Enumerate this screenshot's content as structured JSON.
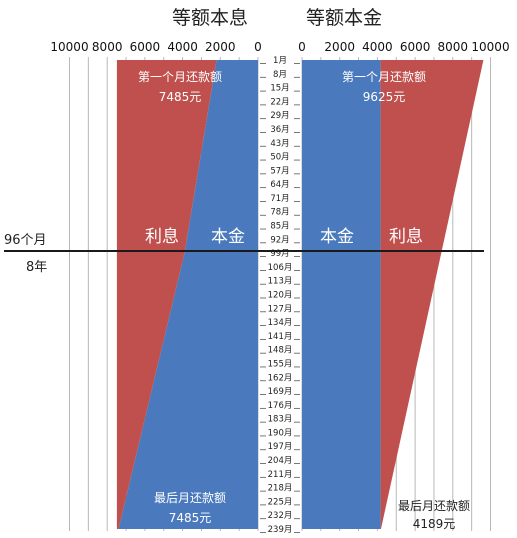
{
  "chart_data": [
    {
      "type": "area",
      "title": "等额本息",
      "x_axis": {
        "ticks": [
          "10000",
          "8000",
          "6000",
          "4000",
          "2000",
          "0"
        ],
        "range": [
          0,
          10000
        ],
        "reversed": true
      },
      "months": [
        1,
        99,
        239
      ],
      "series": [
        {
          "name": "本金",
          "values": [
            2200,
            3900,
            7400
          ]
        },
        {
          "name": "利息",
          "values": [
            5285,
            3585,
            85
          ]
        }
      ],
      "totals": [
        7485,
        7485,
        7485
      ],
      "grid": true,
      "annotations": [
        {
          "line1": "第一个月还款额",
          "line2": "7485元"
        },
        {
          "line1": "最后月还款额",
          "line2": "7485元"
        }
      ]
    },
    {
      "type": "area",
      "title": "等额本金",
      "x_axis": {
        "ticks": [
          "0",
          "2000",
          "4000",
          "6000",
          "8000",
          "10000"
        ],
        "range": [
          0,
          10000
        ]
      },
      "months": [
        1,
        239
      ],
      "series": [
        {
          "name": "本金",
          "values": [
            4170,
            4170
          ]
        },
        {
          "name": "利息",
          "values": [
            5455,
            19
          ]
        }
      ],
      "totals": [
        9625,
        4189
      ],
      "grid": true,
      "annotations": [
        {
          "line1": "第一个月还款额",
          "line2": "9625元"
        },
        {
          "line1": "最后月还款额",
          "line2": "4189元"
        }
      ]
    }
  ],
  "month_labels": [
    "1月",
    "8月",
    "15月",
    "22月",
    "29月",
    "36月",
    "43月",
    "50月",
    "57月",
    "64月",
    "71月",
    "78月",
    "85月",
    "92月",
    "99月",
    "106月",
    "113月",
    "120月",
    "127月",
    "134月",
    "141月",
    "148月",
    "155月",
    "162月",
    "169月",
    "176月",
    "183月",
    "190月",
    "197月",
    "204月",
    "211月",
    "218月",
    "225月",
    "232月",
    "239月"
  ],
  "divider": {
    "label_top": "96个月",
    "label_bottom": "8年"
  },
  "colors": {
    "principal": "#4a7abd",
    "interest": "#c0504d",
    "grid": "#b8b8b8",
    "divider": "#1a1a1a"
  }
}
